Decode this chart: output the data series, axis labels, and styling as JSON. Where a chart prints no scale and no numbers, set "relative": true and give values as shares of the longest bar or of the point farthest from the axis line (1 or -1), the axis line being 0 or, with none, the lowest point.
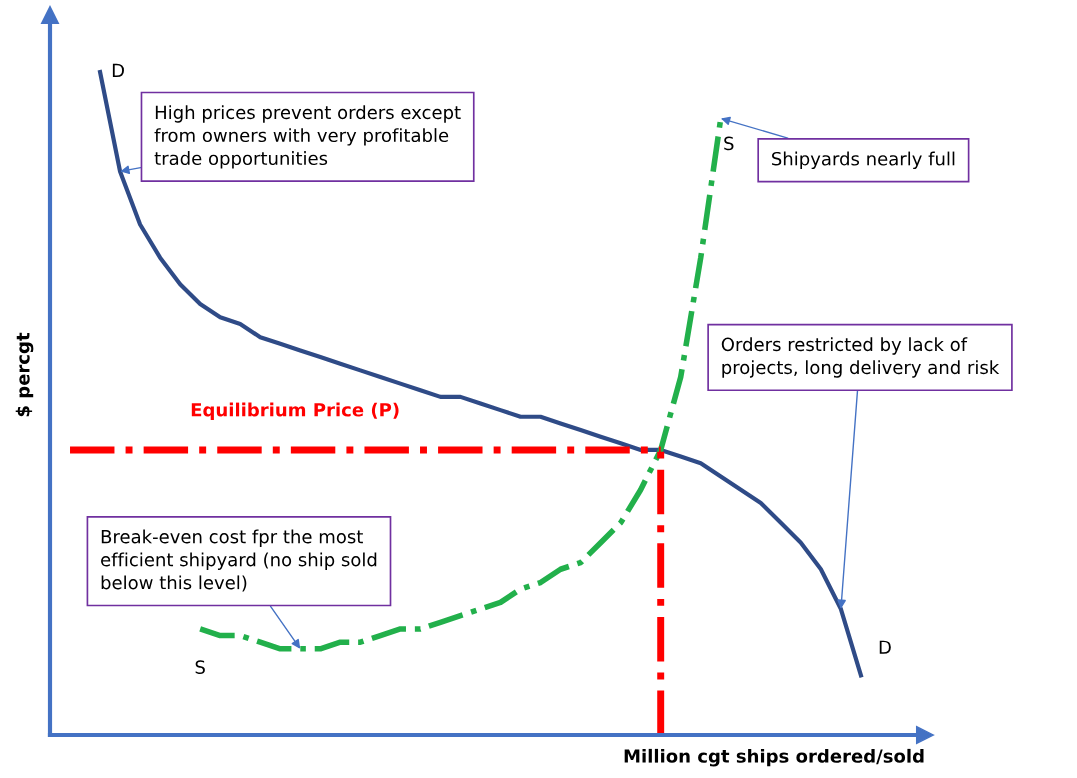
{
  "chart_data": {
    "type": "line",
    "relative": true,
    "xlabel": "Million cgt ships ordered/sold",
    "ylabel": "$ percgt",
    "categories": [
      null,
      null,
      null,
      null,
      null,
      null,
      null,
      null,
      null,
      null,
      null,
      null,
      null,
      null,
      null,
      null,
      null,
      null,
      null,
      null,
      null,
      null,
      null,
      null,
      null,
      null,
      null,
      null,
      null,
      null,
      null,
      null,
      null,
      null,
      null,
      null,
      null,
      null,
      null
    ],
    "series": [
      {
        "name": "D",
        "color": "#2f4b87",
        "line_style": "solid",
        "values": [
          1.0,
          0.85,
          0.77,
          0.72,
          0.68,
          0.65,
          0.63,
          0.62,
          0.6,
          0.59,
          0.58,
          0.57,
          0.56,
          0.55,
          0.54,
          0.53,
          0.52,
          0.51,
          0.51,
          0.5,
          0.49,
          0.48,
          0.48,
          0.47,
          0.46,
          0.45,
          0.44,
          0.43,
          0.43,
          0.42,
          0.41,
          0.39,
          0.37,
          0.35,
          0.32,
          0.29,
          0.25,
          0.19,
          0.09
        ]
      },
      {
        "name": "S",
        "color": "#22b04b",
        "line_style": "dashdot",
        "values": [
          null,
          null,
          null,
          null,
          null,
          0.16,
          0.15,
          0.15,
          0.14,
          0.13,
          0.13,
          0.13,
          0.14,
          0.14,
          0.15,
          0.16,
          0.16,
          0.17,
          0.18,
          0.19,
          0.2,
          0.22,
          0.23,
          0.25,
          0.26,
          0.29,
          0.32,
          0.37,
          0.43,
          0.54,
          0.72,
          0.93,
          null,
          null,
          null,
          null,
          null,
          null,
          null
        ]
      }
    ],
    "ref_lines": [
      {
        "axis": "y",
        "value": 0.43,
        "label": "Equilibrium Price (P)",
        "color": "#ff0000",
        "line_style": "dashdot"
      }
    ],
    "annotations": [
      "High prices prevent orders except\nfrom owners with very profitable\ntrade opportunities",
      "Shipyards nearly full",
      "Orders restricted by lack of\nprojects, long delivery and risk",
      "Break-even cost fpr the most\nefficient shipyard (no ship sold\nbelow this level)"
    ],
    "legend": false
  }
}
